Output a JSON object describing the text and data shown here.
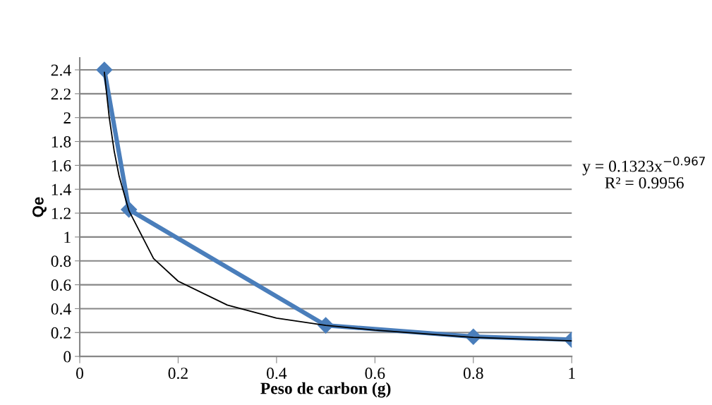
{
  "chart_data": {
    "type": "line",
    "xlabel": "Peso de carbon (g)",
    "ylabel": "Qe",
    "xlim": [
      0,
      1
    ],
    "xticks": [
      0,
      0.2,
      0.4,
      0.6,
      0.8,
      1
    ],
    "ylim": [
      0,
      2.5
    ],
    "yticks": [
      0,
      0.2,
      0.4,
      0.6,
      0.8,
      1,
      1.2,
      1.4,
      1.6,
      1.8,
      2,
      2.2,
      2.4
    ],
    "grid": "y",
    "legend": false,
    "series": [
      {
        "color": "#4a7ebb",
        "marker": "diamond",
        "x": [
          0.05,
          0.1,
          0.5,
          0.8,
          1
        ],
        "values": [
          2.4,
          1.23,
          0.26,
          0.165,
          0.14
        ]
      },
      {
        "color": "#000000",
        "marker": "none",
        "x": [
          0.05,
          0.06,
          0.07,
          0.08,
          0.1,
          0.15,
          0.2,
          0.3,
          0.4,
          0.5,
          0.6,
          0.8,
          1
        ],
        "values": [
          2.38,
          2.0,
          1.72,
          1.51,
          1.22,
          0.82,
          0.63,
          0.43,
          0.32,
          0.26,
          0.22,
          0.16,
          0.13
        ]
      }
    ],
    "annotations": [
      "y = 0.1323x$^{−0.967}$",
      "R² = 0.9956"
    ]
  }
}
